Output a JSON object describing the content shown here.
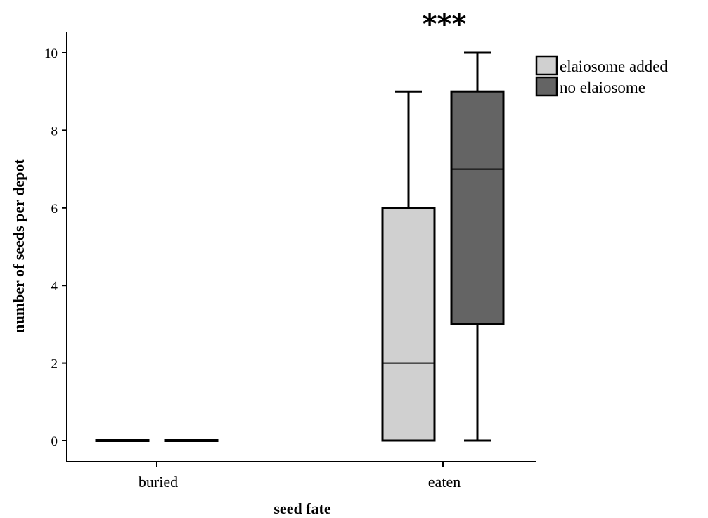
{
  "chart_data": {
    "type": "box",
    "xlabel": "seed fate",
    "ylabel": "number of seeds per depot",
    "categories": [
      "buried",
      "eaten"
    ],
    "ylim": [
      -0.5,
      10.5
    ],
    "yticks": [
      0,
      2,
      4,
      6,
      8,
      10
    ],
    "grid": false,
    "legend_position": "top-right",
    "annotation": "***",
    "annotation_category": "eaten",
    "series": [
      {
        "name": "elaiosome added",
        "color": "#d0d0d0",
        "boxes": [
          {
            "category": "buried",
            "min": 0,
            "q1": 0,
            "median": 0,
            "q3": 0,
            "max": 0
          },
          {
            "category": "eaten",
            "min": 0,
            "q1": 0,
            "median": 2,
            "q3": 6,
            "max": 9
          }
        ]
      },
      {
        "name": "no elaiosome",
        "color": "#646464",
        "boxes": [
          {
            "category": "buried",
            "min": 0,
            "q1": 0,
            "median": 0,
            "q3": 0,
            "max": 0
          },
          {
            "category": "eaten",
            "min": 0,
            "q1": 3,
            "median": 7,
            "q3": 9,
            "max": 10
          }
        ]
      }
    ]
  }
}
